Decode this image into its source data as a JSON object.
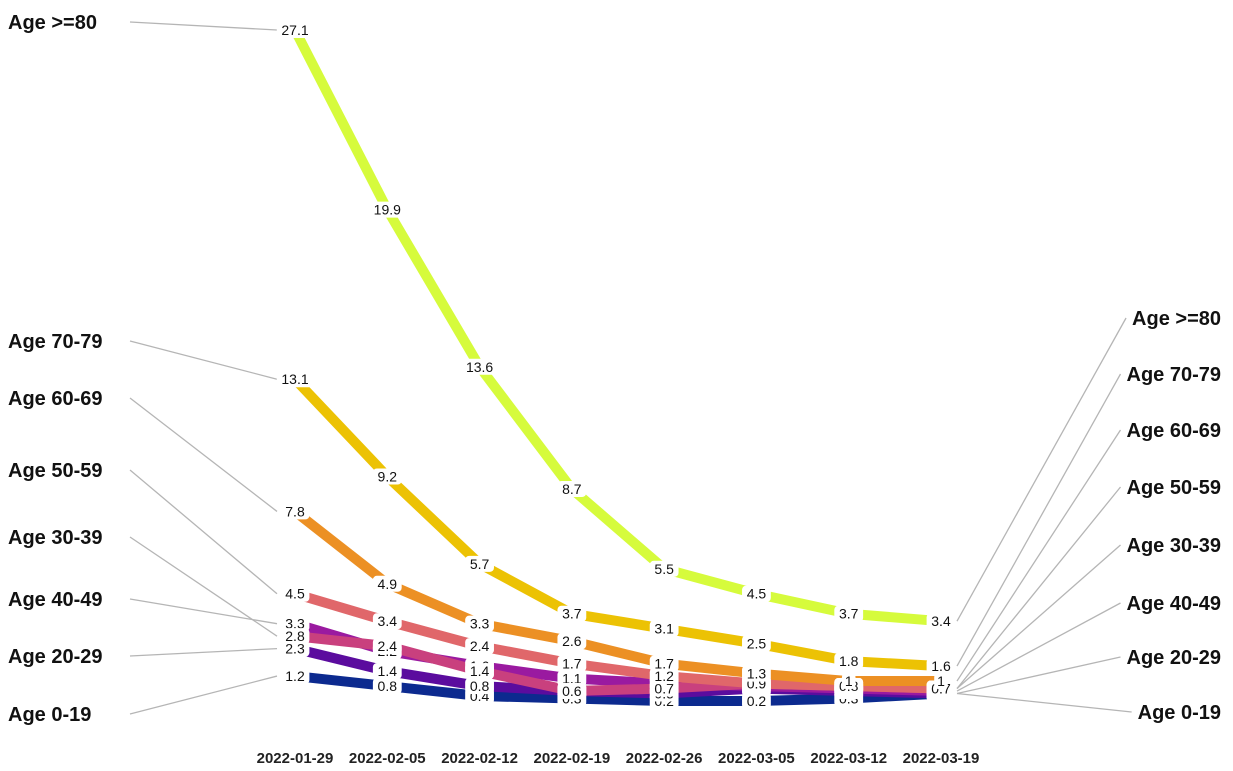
{
  "chart_data": {
    "type": "line",
    "title": "",
    "xlabel": "",
    "ylabel": "",
    "x": [
      "2022-01-29",
      "2022-02-05",
      "2022-02-12",
      "2022-02-19",
      "2022-02-26",
      "2022-03-05",
      "2022-03-12",
      "2022-03-19"
    ],
    "grid": false,
    "legend": "none",
    "series": [
      {
        "name": "Age 0-19",
        "color": "#0c2a8f",
        "values": [
          1.2,
          0.8,
          0.4,
          0.3,
          0.2,
          0.2,
          0.3,
          0.5
        ],
        "labels": [
          "1.2",
          "0.8",
          "0.4",
          "0.3",
          "0.2",
          "0.2",
          "0.3",
          "0.5"
        ]
      },
      {
        "name": "Age 20-29",
        "color": "#5b0c9e",
        "values": [
          2.3,
          1.4,
          0.8,
          0.6,
          0.5,
          0.7,
          0.6,
          0.5
        ],
        "labels": [
          "2.3",
          "1.4",
          "0.8",
          "0.6",
          "0.5",
          "0.7",
          "0.6",
          "0.5"
        ]
      },
      {
        "name": "Age 40-49",
        "color": "#9a1aa0",
        "values": [
          3.3,
          2.2,
          1.6,
          1.1,
          0.9,
          0.8,
          0.7,
          0.6
        ],
        "labels": [
          "3.3",
          "2.2",
          "1.6",
          "1.1",
          "0.9",
          "0.8",
          "0.7",
          "0.6"
        ]
      },
      {
        "name": "Age 30-39",
        "color": "#c9407e",
        "values": [
          2.8,
          2.4,
          1.4,
          0.6,
          0.7,
          0.9,
          0.8,
          0.7
        ],
        "labels": [
          "2.8",
          "2.4",
          "1.4",
          "0.6",
          "0.7",
          "0.9",
          "0.8",
          "0.7"
        ]
      },
      {
        "name": "Age 50-59",
        "color": "#e0676a",
        "values": [
          4.5,
          3.4,
          2.4,
          1.7,
          1.2,
          0.9,
          0.8,
          0.7
        ],
        "labels": [
          "4.5",
          "3.4",
          "2.4",
          "1.7",
          "1.2",
          "0.9",
          "0.8",
          "0.7"
        ]
      },
      {
        "name": "Age 60-69",
        "color": "#ec9024",
        "values": [
          7.8,
          4.9,
          3.3,
          2.6,
          1.7,
          1.3,
          1.0,
          1.0
        ],
        "labels": [
          "7.8",
          "4.9",
          "3.3",
          "2.6",
          "1.7",
          "1.3",
          "1",
          "1"
        ]
      },
      {
        "name": "Age 70-79",
        "color": "#ecc204",
        "values": [
          13.1,
          9.2,
          5.7,
          3.7,
          3.1,
          2.5,
          1.8,
          1.6
        ],
        "labels": [
          "13.1",
          "9.2",
          "5.7",
          "3.7",
          "3.1",
          "2.5",
          "1.8",
          "1.6"
        ]
      },
      {
        "name": "Age >=80",
        "color": "#d6fb3c",
        "values": [
          27.1,
          19.9,
          13.6,
          8.7,
          5.5,
          4.5,
          3.7,
          3.4
        ],
        "labels": [
          "27.1",
          "19.9",
          "13.6",
          "8.7",
          "5.5",
          "4.5",
          "3.7",
          "3.4"
        ]
      }
    ],
    "left_labels": [
      {
        "series": "Age >=80",
        "text": "Age >=80"
      },
      {
        "series": "Age 70-79",
        "text": "Age 70-79"
      },
      {
        "series": "Age 60-69",
        "text": "Age 60-69"
      },
      {
        "series": "Age 50-59",
        "text": "Age 50-59"
      },
      {
        "series": "Age 30-39",
        "text": "Age 30-39"
      },
      {
        "series": "Age 40-49",
        "text": "Age 40-49"
      },
      {
        "series": "Age 20-29",
        "text": "Age 20-29"
      },
      {
        "series": "Age 0-19",
        "text": "Age 0-19"
      }
    ],
    "right_labels": [
      {
        "series": "Age >=80",
        "text": "Age >=80"
      },
      {
        "series": "Age 70-79",
        "text": "Age 70-79"
      },
      {
        "series": "Age 60-69",
        "text": "Age 60-69"
      },
      {
        "series": "Age 50-59",
        "text": "Age 50-59"
      },
      {
        "series": "Age 30-39",
        "text": "Age 30-39"
      },
      {
        "series": "Age 40-49",
        "text": "Age 40-49"
      },
      {
        "series": "Age 20-29",
        "text": "Age 20-29"
      },
      {
        "series": "Age 0-19",
        "text": "Age 0-19"
      }
    ],
    "connector_color": "#b5b5b5"
  }
}
